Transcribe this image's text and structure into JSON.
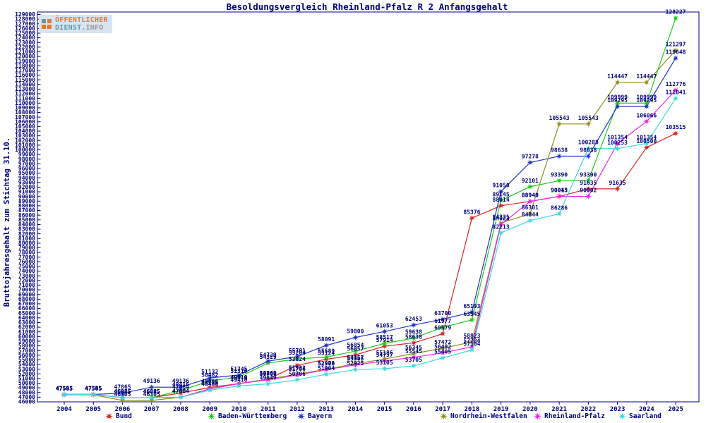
{
  "title": "Besoldungsvergleich Rheinland-Pfalz R 2 Anfangsgehalt",
  "watermark": {
    "line1": "ÖFFENTLICHER",
    "line2_part1": "DIENST.",
    "line2_part2": "INFO"
  },
  "axis_color": "#000080",
  "chart_data": {
    "type": "line",
    "title": "Besoldungsvergleich Rheinland-Pfalz R 2 Anfangsgehalt",
    "xlabel": "",
    "ylabel": "Bruttojahresgehalt zum Stichtag 31.10.",
    "ylim": [
      46000,
      129000
    ],
    "ytick_step": 1000,
    "grid": false,
    "legend_position": "bottom",
    "point_labels": true,
    "x": [
      2004,
      2005,
      2006,
      2007,
      2008,
      2009,
      2010,
      2011,
      2012,
      2013,
      2014,
      2015,
      2016,
      2017,
      2018,
      2019,
      2020,
      2021,
      2022,
      2023,
      2024,
      2025
    ],
    "series": [
      {
        "name": "Bund",
        "color": "#dd2222",
        "values": [
          47585,
          47585,
          46885,
          46885,
          47884,
          49086,
          49910,
          50860,
          53824,
          55124,
          56057,
          57914,
          58638,
          60579,
          85376,
          88014,
          88948,
          90013,
          91635,
          91635,
          100500,
          103515
        ]
      },
      {
        "name": "Baden-Württemberg",
        "color": "#19cc19",
        "values": [
          47585,
          47585,
          46885,
          46885,
          48416,
          50482,
          51310,
          54329,
          55204,
          55589,
          56854,
          58517,
          59638,
          61977,
          63545,
          89145,
          92101,
          93390,
          93390,
          109999,
          109999,
          128227
        ]
      },
      {
        "name": "Bayern",
        "color": "#2233cc",
        "values": [
          47585,
          47585,
          47865,
          49136,
          49136,
          51132,
          51745,
          54729,
          55701,
          58091,
          59800,
          61053,
          62453,
          63700,
          65193,
          91050,
          97278,
          98638,
          98638,
          109295,
          109295,
          119648
        ]
      },
      {
        "name": "Nordrhein-Westfalen",
        "color": "#8f8f1a",
        "values": [
          47505,
          47505,
          46305,
          46305,
          47004,
          48786,
          49910,
          50860,
          51932,
          52976,
          54157,
          55186,
          56345,
          57472,
          58823,
          84321,
          86301,
          105543,
          105543,
          114447,
          114447,
          121297
        ]
      },
      {
        "name": "Rheinland-Pfalz",
        "color": "#ee22ee",
        "values": [
          47585,
          47585,
          46885,
          46885,
          47004,
          48786,
          49910,
          50706,
          51706,
          52900,
          53905,
          54757,
          55545,
          56492,
          57784,
          84023,
          88940,
          90045,
          90002,
          101354,
          106066,
          112776
        ]
      },
      {
        "name": "Saarland",
        "color": "#3bdbdb",
        "values": [
          47585,
          47585,
          46885,
          46885,
          47004,
          48486,
          49410,
          49849,
          50706,
          51904,
          52925,
          53105,
          53705,
          55405,
          57104,
          82213,
          84844,
          86286,
          100288,
          100253,
          101354,
          111041
        ]
      }
    ]
  },
  "legend_marker": "star"
}
